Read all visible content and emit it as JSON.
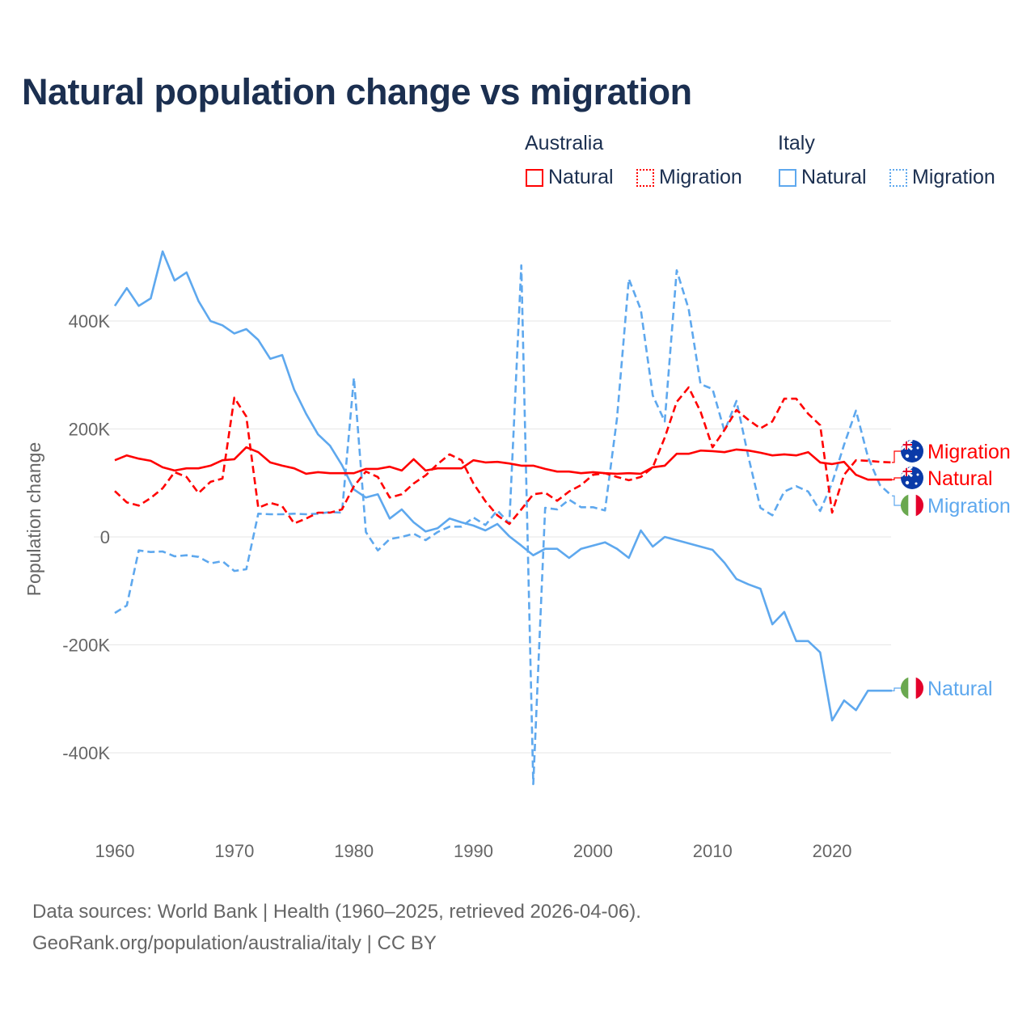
{
  "chart_data": {
    "type": "line",
    "title": "Natural population change vs migration",
    "xlabel": "",
    "ylabel": "Population change",
    "xlim": [
      1960,
      2025
    ],
    "ylim": [
      -400000,
      400000
    ],
    "x_ticks": [
      "1960",
      "1970",
      "1980",
      "1990",
      "2000",
      "2010",
      "2020"
    ],
    "y_ticks": [
      {
        "v": 400000,
        "label": "400K"
      },
      {
        "v": 200000,
        "label": "200K"
      },
      {
        "v": 0,
        "label": "0"
      },
      {
        "v": -200000,
        "label": "-200K"
      },
      {
        "v": -400000,
        "label": "-400K"
      }
    ],
    "grid": true,
    "legend_placement": "top-right",
    "legend_groups": [
      "Australia",
      "Italy"
    ],
    "x": [
      1960,
      1961,
      1962,
      1963,
      1964,
      1965,
      1966,
      1967,
      1968,
      1969,
      1970,
      1971,
      1972,
      1973,
      1974,
      1975,
      1976,
      1977,
      1978,
      1979,
      1980,
      1981,
      1982,
      1983,
      1984,
      1985,
      1986,
      1987,
      1988,
      1989,
      1990,
      1991,
      1992,
      1993,
      1994,
      1995,
      1996,
      1997,
      1998,
      1999,
      2000,
      2001,
      2002,
      2003,
      2004,
      2005,
      2006,
      2007,
      2008,
      2009,
      2010,
      2011,
      2012,
      2013,
      2014,
      2015,
      2016,
      2017,
      2018,
      2019,
      2020,
      2021,
      2022,
      2023,
      2024,
      2025
    ],
    "series": [
      {
        "name": "Natural",
        "country": "Australia",
        "color": "#ff0000",
        "dash": false,
        "end_label": "Natural",
        "flag": "australia",
        "values": [
          142,
          151,
          145,
          141,
          129,
          123,
          127,
          127,
          132,
          142,
          144,
          166,
          157,
          138,
          132,
          127,
          117,
          120,
          118,
          118,
          118,
          126,
          126,
          130,
          123,
          144,
          123,
          127,
          127,
          127,
          142,
          138,
          139,
          136,
          132,
          132,
          126,
          121,
          121,
          118,
          120,
          118,
          117,
          118,
          117,
          129,
          132,
          154,
          154,
          160,
          159,
          157,
          162,
          160,
          156,
          151,
          153,
          151,
          157,
          138,
          135,
          139,
          115,
          106,
          106,
          106
        ]
      },
      {
        "name": "Migration",
        "country": "Australia",
        "color": "#ff0000",
        "dash": true,
        "end_label": "Migration",
        "flag": "australia",
        "values": [
          85,
          64,
          58,
          72,
          90,
          120,
          111,
          81,
          102,
          108,
          258,
          223,
          54,
          63,
          57,
          25,
          34,
          45,
          45,
          51,
          94,
          121,
          111,
          73,
          79,
          99,
          114,
          135,
          153,
          142,
          99,
          66,
          40,
          24,
          51,
          79,
          82,
          67,
          84,
          96,
          115,
          118,
          111,
          105,
          111,
          129,
          184,
          250,
          277,
          232,
          166,
          198,
          235,
          217,
          201,
          214,
          256,
          256,
          228,
          207,
          45,
          115,
          142,
          141,
          139,
          138
        ]
      },
      {
        "name": "Natural",
        "country": "Italy",
        "color": "#5ea8ee",
        "dash": false,
        "end_label": "Natural",
        "flag": "italy",
        "values": [
          428,
          461,
          428,
          442,
          529,
          475,
          490,
          437,
          400,
          392,
          377,
          385,
          365,
          330,
          337,
          273,
          228,
          190,
          169,
          133,
          88,
          73,
          79,
          34,
          51,
          27,
          10,
          16,
          34,
          27,
          21,
          12,
          24,
          1,
          -16,
          -34,
          -22,
          -22,
          -39,
          -22,
          -16,
          -10,
          -22,
          -39,
          12,
          -18,
          0,
          -6,
          -12,
          -18,
          -24,
          -48,
          -78,
          -88,
          -96,
          -162,
          -139,
          -193,
          -193,
          -214,
          -340,
          -303,
          -321,
          -285,
          -285,
          -285
        ]
      },
      {
        "name": "Migration",
        "country": "Italy",
        "color": "#5ea8ee",
        "dash": true,
        "end_label": "Migration",
        "flag": "italy",
        "values": [
          -141,
          -127,
          -25,
          -28,
          -27,
          -36,
          -34,
          -37,
          -49,
          -45,
          -63,
          -60,
          43,
          42,
          42,
          43,
          42,
          43,
          46,
          45,
          295,
          9,
          -25,
          -4,
          0,
          6,
          -6,
          9,
          19,
          19,
          36,
          22,
          49,
          25,
          503,
          -458,
          54,
          51,
          69,
          55,
          55,
          49,
          219,
          478,
          421,
          262,
          214,
          494,
          422,
          283,
          274,
          196,
          252,
          148,
          54,
          40,
          84,
          94,
          84,
          48,
          100,
          171,
          234,
          148,
          96,
          76
        ]
      }
    ],
    "value_unit": "thousands"
  },
  "source": {
    "line1": "Data sources: World Bank | Health (1960–2025, retrieved 2026-04-06).",
    "line2": "GeoRank.org/population/australia/italy | CC BY"
  }
}
